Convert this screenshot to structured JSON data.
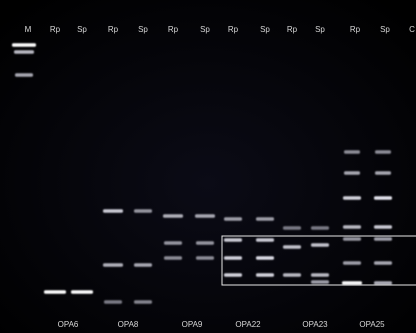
{
  "lane_labels": [
    "M",
    "Rp",
    "Sp",
    "Rp",
    "Sp",
    "Rp",
    "Sp",
    "Rp",
    "Sp",
    "Rp",
    "Sp",
    "Rp",
    "Sp",
    "C"
  ],
  "primer_labels": [
    "OPA6",
    "OPA8",
    "OPA9",
    "OPA22",
    "OPA23",
    "OPA25"
  ]
}
